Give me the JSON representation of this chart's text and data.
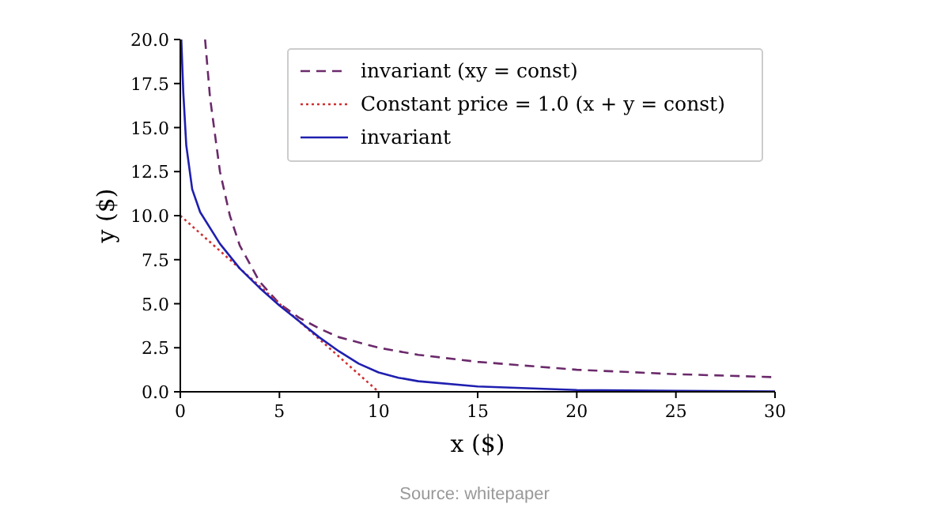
{
  "chart_data": {
    "type": "line",
    "xlabel": "x ($)",
    "ylabel": "y ($)",
    "xlim": [
      0,
      30
    ],
    "ylim": [
      0,
      20
    ],
    "xticks": [
      0,
      5,
      10,
      15,
      20,
      25,
      30
    ],
    "yticks": [
      {
        "value": 0,
        "label": "0.0"
      },
      {
        "value": 2.5,
        "label": "2.5"
      },
      {
        "value": 5,
        "label": "5.0"
      },
      {
        "value": 7.5,
        "label": "7.5"
      },
      {
        "value": 10,
        "label": "10.0"
      },
      {
        "value": 12.5,
        "label": "12.5"
      },
      {
        "value": 15,
        "label": "15.0"
      },
      {
        "value": 17.5,
        "label": "17.5"
      },
      {
        "value": 20,
        "label": "20.0"
      }
    ],
    "grid": false,
    "legend": "top right",
    "series": [
      {
        "name": "invariant (xy = const)",
        "color": "#6b2a6b",
        "line_style": "dashed",
        "x": [
          1.25,
          1.5,
          2,
          2.5,
          3,
          4,
          5,
          6,
          7,
          8,
          10,
          12,
          15,
          20,
          25,
          30
        ],
        "values": [
          20,
          16.7,
          12.5,
          10,
          8.3,
          6.25,
          5,
          4.2,
          3.6,
          3.1,
          2.5,
          2.1,
          1.7,
          1.25,
          1.0,
          0.83
        ]
      },
      {
        "name": "Constant price = 1.0 (x + y = const)",
        "color": "#d03030",
        "line_style": "dotted",
        "x": [
          0,
          10
        ],
        "values": [
          10,
          0
        ]
      },
      {
        "name": "invariant",
        "color": "#1f1fb0",
        "line_style": "solid",
        "x": [
          0.05,
          0.15,
          0.3,
          0.6,
          1,
          2,
          3,
          4,
          5,
          6,
          7,
          8,
          9,
          10,
          11,
          12,
          15,
          20,
          25,
          30
        ],
        "values": [
          20,
          17,
          14,
          11.5,
          10.2,
          8.4,
          7,
          5.9,
          4.9,
          4,
          3.1,
          2.3,
          1.6,
          1.1,
          0.8,
          0.6,
          0.3,
          0.1,
          0.05,
          0.02
        ]
      }
    ],
    "annotations": [
      "Source: whitepaper"
    ]
  }
}
